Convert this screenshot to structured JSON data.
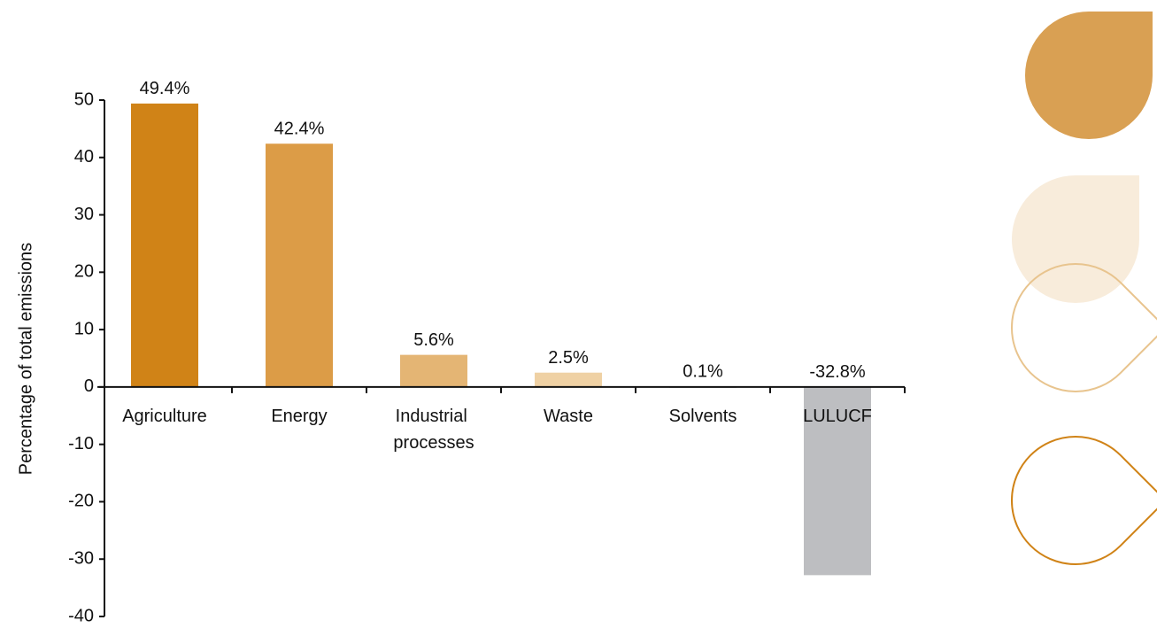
{
  "chart_data": {
    "type": "bar",
    "y_label": "Percentage of total emissions",
    "categories": [
      "Agriculture",
      "Energy",
      "Industrial processes",
      "Waste",
      "Solvents",
      "LULUCF"
    ],
    "values": [
      49.4,
      42.4,
      5.6,
      2.5,
      0.1,
      -32.8
    ],
    "value_labels": [
      "49.4%",
      "42.4%",
      "5.6%",
      "2.5%",
      "0.1%",
      "-32.8%"
    ],
    "colors": [
      "#d08317",
      "#dc9c47",
      "#e4b574",
      "#efd1a4",
      "#8a8a8a",
      "#bdbec1"
    ],
    "ylim": [
      -40,
      50
    ],
    "yticks": [
      -40,
      -30,
      -20,
      -10,
      0,
      10,
      20,
      30,
      40,
      50
    ],
    "grid": false
  }
}
